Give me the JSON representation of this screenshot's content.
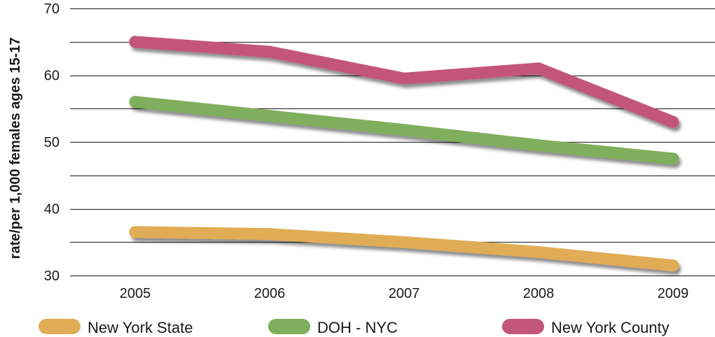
{
  "chart_data": {
    "type": "line",
    "ylabel": "rate/per 1,000 females ages 15-17",
    "xlabel": "",
    "title": "",
    "x": [
      "2005",
      "2006",
      "2007",
      "2008",
      "2009"
    ],
    "ylim": [
      30,
      70
    ],
    "yticks": [
      30,
      40,
      50,
      60,
      70
    ],
    "grid": true,
    "legend_position": "bottom",
    "series": [
      {
        "name": "New York State",
        "color": "#e0ac55",
        "values": [
          36.5,
          36.2,
          35.0,
          33.5,
          31.5
        ]
      },
      {
        "name": "DOH - NYC",
        "color": "#7fae5c",
        "values": [
          56.0,
          53.9,
          51.8,
          49.5,
          47.5
        ]
      },
      {
        "name": "New York County",
        "color": "#c4557a",
        "values": [
          65.0,
          63.5,
          59.5,
          61.0,
          53.0
        ]
      }
    ]
  }
}
